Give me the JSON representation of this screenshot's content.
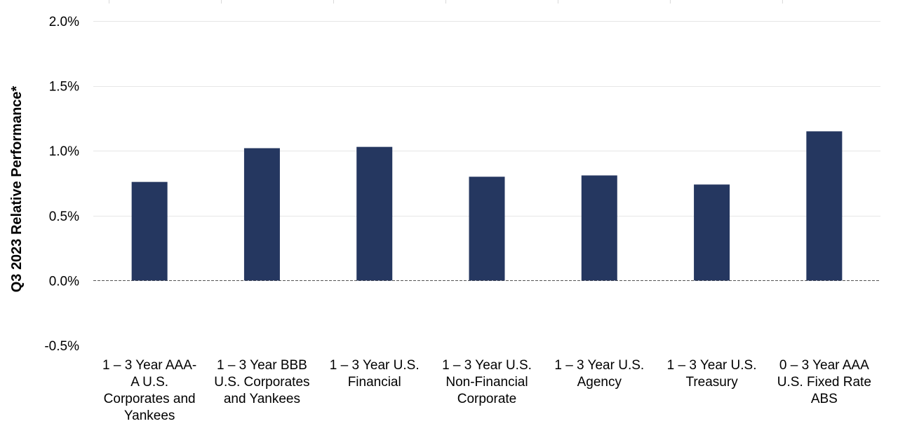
{
  "chart_data": {
    "type": "bar",
    "title": "",
    "xlabel": "",
    "ylabel": "Q3 2023 Relative Performance*",
    "ylim": [
      -0.5,
      2.0
    ],
    "yticks": [
      "-0.5%",
      "0.0%",
      "0.5%",
      "1.0%",
      "1.5%",
      "2.0%"
    ],
    "ytick_values": [
      -0.5,
      0.0,
      0.5,
      1.0,
      1.5,
      2.0
    ],
    "grid": true,
    "zero_line": "dashed",
    "categories": [
      [
        "1 – 3 Year AAA-",
        "A U.S.",
        "Corporates and",
        "Yankees"
      ],
      [
        "1 – 3 Year BBB",
        "U.S. Corporates",
        "and Yankees"
      ],
      [
        "1 – 3 Year U.S.",
        "Financial"
      ],
      [
        "1 – 3 Year U.S.",
        "Non-Financial",
        "Corporate"
      ],
      [
        "1 – 3 Year U.S.",
        "Agency"
      ],
      [
        "1 – 3 Year U.S.",
        "Treasury"
      ],
      [
        "0 – 3 Year AAA",
        "U.S. Fixed Rate",
        "ABS"
      ]
    ],
    "values": [
      0.76,
      1.02,
      1.03,
      0.8,
      0.81,
      0.74,
      1.15
    ],
    "colors": {
      "bar": "#253760",
      "grid": "#e6e6e6",
      "zero_line": "#555555"
    }
  }
}
